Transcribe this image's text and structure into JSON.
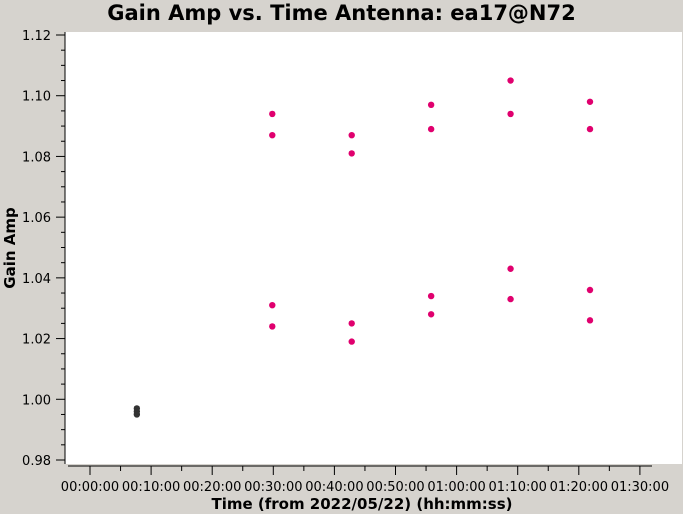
{
  "chart_data": {
    "type": "scatter",
    "title": "Gain Amp vs. Time Antenna: ea17@N72",
    "xlabel": "Time (from 2022/05/22) (hh:mm:ss)",
    "ylabel": "Gain Amp",
    "xlim": [
      "00:00:00",
      "01:30:00"
    ],
    "ylim": [
      0.98,
      1.12
    ],
    "x_ticks": [
      "00:00:00",
      "00:10:00",
      "00:20:00",
      "00:30:00",
      "00:40:00",
      "00:50:00",
      "01:00:00",
      "01:10:00",
      "01:20:00",
      "01:30:00"
    ],
    "y_ticks": [
      "0.98",
      "1.00",
      "1.02",
      "1.04",
      "1.06",
      "1.08",
      "1.10",
      "1.12"
    ],
    "grid": false,
    "series": [
      {
        "color": "#333333",
        "points": [
          {
            "x": "00:07:40",
            "y": 0.997
          },
          {
            "x": "00:07:40",
            "y": 0.996
          },
          {
            "x": "00:07:40",
            "y": 0.995
          }
        ]
      },
      {
        "color": "#e0006e",
        "points": [
          {
            "x": "00:29:50",
            "y": 1.094
          },
          {
            "x": "00:29:50",
            "y": 1.087
          },
          {
            "x": "00:29:50",
            "y": 1.031
          },
          {
            "x": "00:29:50",
            "y": 1.024
          },
          {
            "x": "00:42:50",
            "y": 1.087
          },
          {
            "x": "00:42:50",
            "y": 1.081
          },
          {
            "x": "00:42:50",
            "y": 1.025
          },
          {
            "x": "00:42:50",
            "y": 1.019
          },
          {
            "x": "00:55:50",
            "y": 1.097
          },
          {
            "x": "00:55:50",
            "y": 1.089
          },
          {
            "x": "00:55:50",
            "y": 1.034
          },
          {
            "x": "00:55:50",
            "y": 1.028
          },
          {
            "x": "01:08:50",
            "y": 1.105
          },
          {
            "x": "01:08:50",
            "y": 1.094
          },
          {
            "x": "01:08:50",
            "y": 1.043
          },
          {
            "x": "01:08:50",
            "y": 1.033
          },
          {
            "x": "01:21:50",
            "y": 1.098
          },
          {
            "x": "01:21:50",
            "y": 1.089
          },
          {
            "x": "01:21:50",
            "y": 1.036
          },
          {
            "x": "01:21:50",
            "y": 1.026
          }
        ]
      }
    ]
  }
}
